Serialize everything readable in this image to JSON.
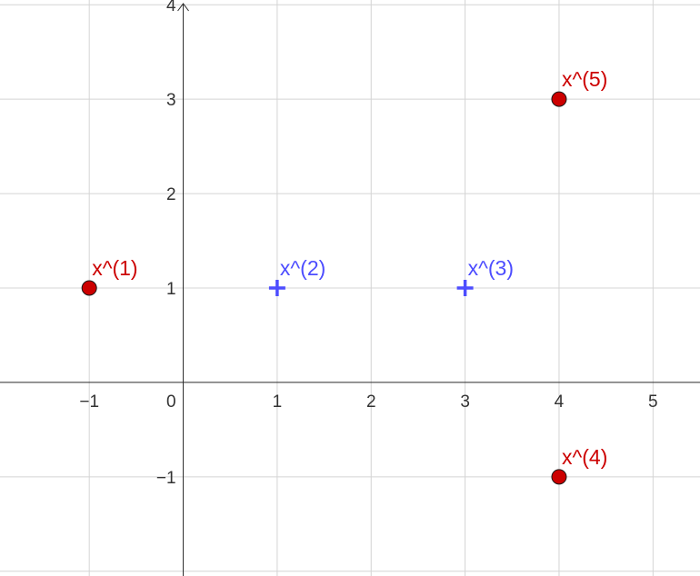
{
  "chart_data": {
    "type": "scatter",
    "title": "",
    "xlabel": "",
    "ylabel": "",
    "xlim": [
      -1.95,
      5.5
    ],
    "ylim": [
      -2.05,
      4.05
    ],
    "grid": true,
    "x_ticks": [
      -1,
      1,
      2,
      3,
      4,
      5
    ],
    "x_tick_labels": [
      "−1",
      "1",
      "2",
      "3",
      "4",
      "5"
    ],
    "y_ticks": [
      -1,
      1,
      2,
      3,
      4
    ],
    "y_tick_labels": [
      "−1",
      "1",
      "2",
      "3",
      "4"
    ],
    "origin_label": "0",
    "points": [
      {
        "label": "x^(1)",
        "x": -1,
        "y": 1,
        "marker": "circle",
        "color": "#cc0000"
      },
      {
        "label": "x^(2)",
        "x": 1,
        "y": 1,
        "marker": "plus",
        "color": "#4d4dff"
      },
      {
        "label": "x^(3)",
        "x": 3,
        "y": 1,
        "marker": "plus",
        "color": "#4d4dff"
      },
      {
        "label": "x^(4)",
        "x": 4,
        "y": -1,
        "marker": "circle",
        "color": "#cc0000"
      },
      {
        "label": "x^(5)",
        "x": 4,
        "y": 3,
        "marker": "circle",
        "color": "#cc0000"
      }
    ]
  }
}
